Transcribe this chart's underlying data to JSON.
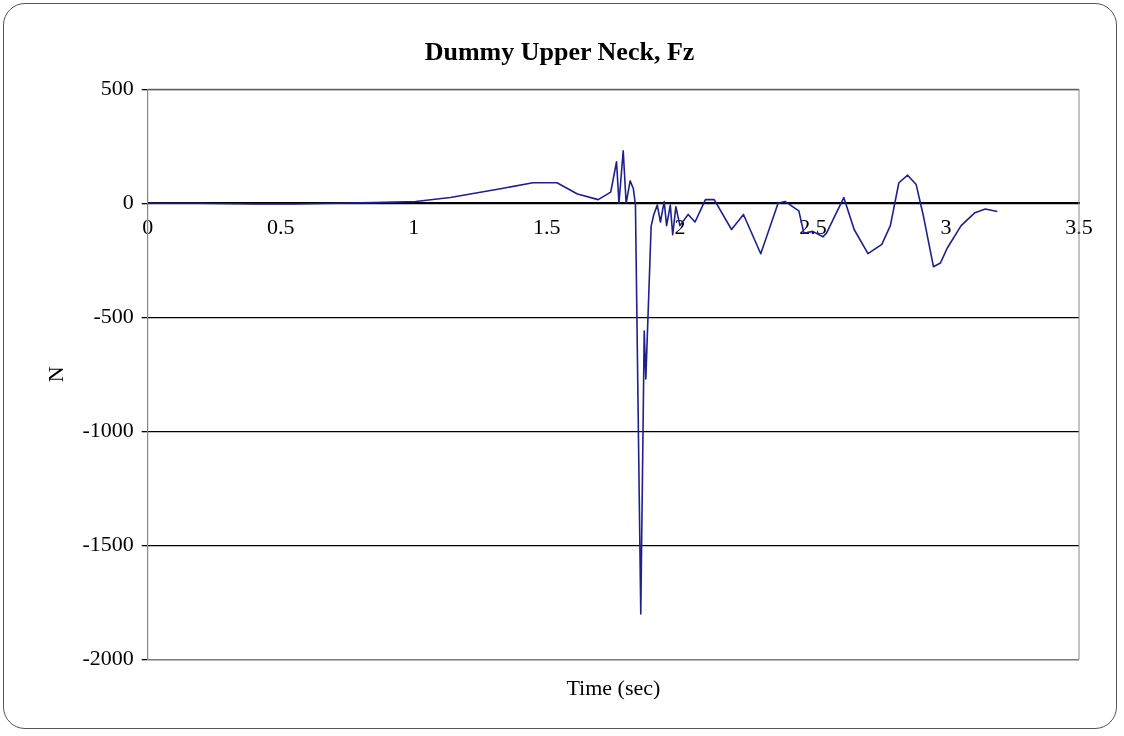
{
  "chart_data": {
    "type": "line",
    "title": "Dummy Upper Neck, Fz",
    "xlabel": "Time (sec)",
    "ylabel": "N",
    "x": [
      0,
      0.2,
      0.4,
      0.55,
      0.7,
      0.85,
      1.007,
      1.137,
      1.331,
      1.448,
      1.487,
      1.538,
      1.615,
      1.693,
      1.74,
      1.762,
      1.771,
      1.787,
      1.798,
      1.813,
      1.825,
      1.833,
      1.853,
      1.866,
      1.872,
      1.892,
      1.902,
      1.915,
      1.927,
      1.941,
      1.95,
      1.964,
      1.973,
      1.985,
      2.0,
      2.031,
      2.057,
      2.096,
      2.129,
      2.194,
      2.239,
      2.304,
      2.369,
      2.395,
      2.447,
      2.466,
      2.499,
      2.538,
      2.551,
      2.616,
      2.655,
      2.707,
      2.759,
      2.791,
      2.823,
      2.856,
      2.888,
      2.914,
      2.953,
      2.979,
      3.005,
      3.057,
      3.109,
      3.148,
      3.193
    ],
    "values": [
      0,
      0,
      -3,
      -3,
      0,
      3,
      8,
      25,
      65,
      90,
      90,
      90,
      41,
      16,
      49,
      182,
      0,
      230,
      0,
      98,
      65,
      -8,
      -1800,
      -560,
      -770,
      -100,
      -49,
      -8,
      -82,
      8,
      -98,
      -8,
      -138,
      -15,
      -98,
      -49,
      -82,
      16,
      16,
      -115,
      -49,
      -221,
      0,
      8,
      -33,
      -131,
      -123,
      -147,
      -131,
      25,
      -115,
      -221,
      -180,
      -98,
      90,
      123,
      82,
      -49,
      -278,
      -262,
      -196,
      -98,
      -41,
      -25,
      -36
    ],
    "color": "#1f1f8f",
    "xlim": [
      0,
      3.5
    ],
    "xticks": [
      0,
      0.5,
      1,
      1.5,
      2,
      2.5,
      3,
      3.5
    ],
    "ylim": [
      -2000,
      500
    ],
    "yticks": [
      -2000,
      -1500,
      -1000,
      -500,
      0,
      500
    ],
    "grid": "y",
    "marker": "none",
    "line_style": "solid"
  }
}
